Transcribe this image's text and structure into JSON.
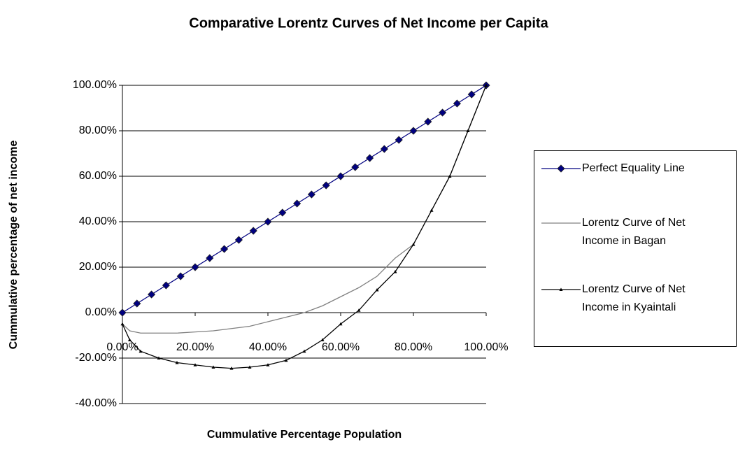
{
  "chart_data": {
    "type": "line",
    "title": "Comparative Lorentz Curves of Net Income per Capita",
    "xlabel": "Cummulative Percentage Population",
    "ylabel": "Cummulative percentage of net income",
    "xlim": [
      0,
      100
    ],
    "ylim": [
      -40,
      100
    ],
    "xticks": [
      {
        "value": 0,
        "label": "0.00%"
      },
      {
        "value": 20,
        "label": "20.00%"
      },
      {
        "value": 40,
        "label": "40.00%"
      },
      {
        "value": 60,
        "label": "60.00%"
      },
      {
        "value": 80,
        "label": "80.00%"
      },
      {
        "value": 100,
        "label": "100.00%"
      }
    ],
    "yticks": [
      {
        "value": -40,
        "label": "-40.00%"
      },
      {
        "value": -20,
        "label": "-20.00%"
      },
      {
        "value": 0,
        "label": "0.00%"
      },
      {
        "value": 20,
        "label": "20.00%"
      },
      {
        "value": 40,
        "label": "40.00%"
      },
      {
        "value": 60,
        "label": "60.00%"
      },
      {
        "value": 80,
        "label": "80.00%"
      },
      {
        "value": 100,
        "label": "100.00%"
      }
    ],
    "grid": true,
    "legend": "right",
    "series": [
      {
        "name": "Perfect Equality Line",
        "color": "#000080",
        "marker": "diamond",
        "x": [
          0,
          4,
          8,
          12,
          16,
          20,
          24,
          28,
          32,
          36,
          40,
          44,
          48,
          52,
          56,
          60,
          64,
          68,
          72,
          76,
          80,
          84,
          88,
          92,
          96,
          100
        ],
        "values": [
          0,
          4,
          8,
          12,
          16,
          20,
          24,
          28,
          32,
          36,
          40,
          44,
          48,
          52,
          56,
          60,
          64,
          68,
          72,
          76,
          80,
          84,
          88,
          92,
          96,
          100
        ]
      },
      {
        "name": "Lorentz Curve of Net Income in Bagan",
        "color": "#808080",
        "marker": "none",
        "x": [
          0,
          2,
          5,
          10,
          15,
          20,
          25,
          30,
          35,
          40,
          45,
          50,
          55,
          60,
          65,
          70,
          75,
          80,
          85,
          90,
          95,
          100
        ],
        "values": [
          -5,
          -8,
          -9,
          -9,
          -9,
          -8.5,
          -8,
          -7,
          -6,
          -4,
          -2,
          0,
          3,
          7,
          11,
          16,
          24,
          30,
          45,
          60,
          80,
          100
        ]
      },
      {
        "name": "Lorentz Curve of Net Income in Kyaintali",
        "color": "#000000",
        "marker": "triangle",
        "x": [
          0,
          2,
          5,
          10,
          15,
          20,
          25,
          30,
          35,
          40,
          45,
          50,
          55,
          60,
          65,
          70,
          75,
          80,
          85,
          90,
          95,
          100
        ],
        "values": [
          -5,
          -12,
          -17,
          -20,
          -22,
          -23,
          -24,
          -24.5,
          -24,
          -23,
          -21,
          -17,
          -12,
          -5,
          1,
          10,
          18,
          30,
          45,
          60,
          80,
          100
        ]
      }
    ]
  }
}
